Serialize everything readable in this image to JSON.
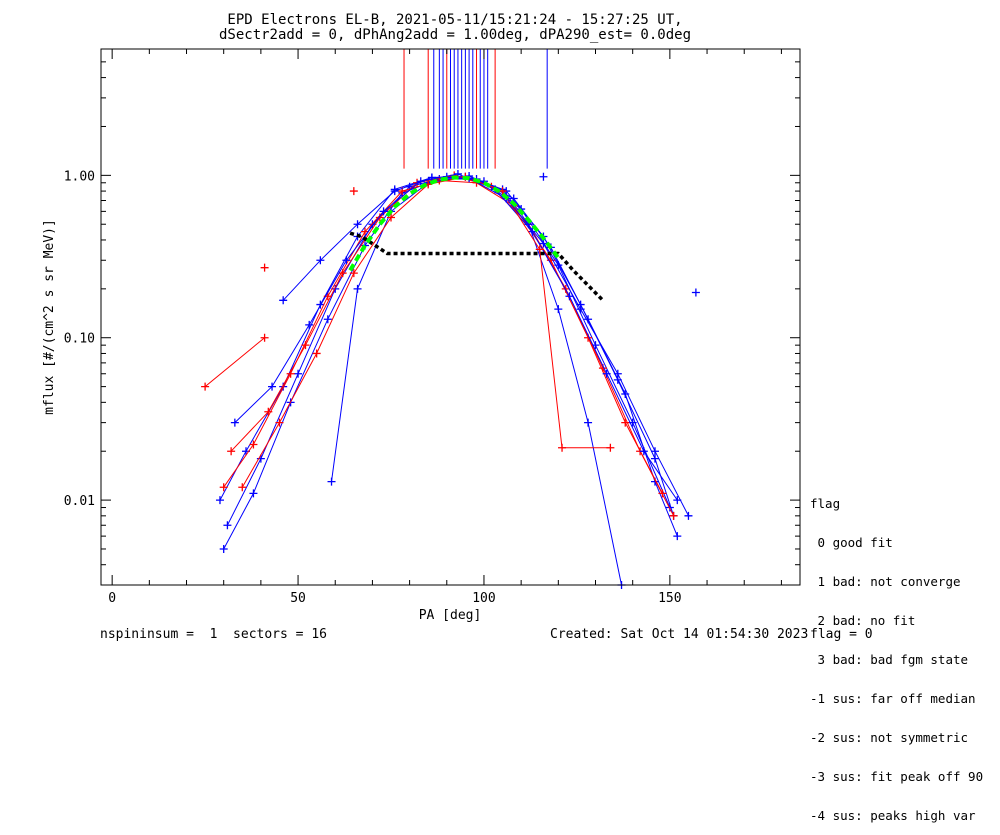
{
  "chart_data": {
    "type": "line",
    "title": "EPD Electrons EL-B, 2021-05-11/15:21:24 - 15:27:25 UT,",
    "subtitle": "dSectr2add = 0, dPhAng2add = 1.00deg, dPA290_est=   0.0deg",
    "xlabel": "PA [deg]",
    "ylabel": "mflux [#/(cm^2 s sr MeV)]",
    "xlim": [
      -3,
      185
    ],
    "ylim": [
      0.003,
      6.0
    ],
    "yscale": "log",
    "x_ticks": [
      0,
      50,
      100,
      150
    ],
    "x_tick_labels": [
      "0",
      "50",
      "100",
      "150"
    ],
    "y_ticks": [
      0.01,
      0.1,
      1.0
    ],
    "y_tick_labels": [
      "0.01",
      "0.10",
      "1.00"
    ],
    "colors": {
      "blue": "#0000ff",
      "red": "#ff0000",
      "fit": "#00ff00",
      "median": "#000000"
    },
    "series": [
      {
        "color": "blue",
        "x": [
          30,
          38,
          48,
          58,
          68,
          78,
          88,
          98,
          108,
          118,
          128,
          138,
          146,
          152
        ],
        "y": [
          0.005,
          0.011,
          0.04,
          0.13,
          0.37,
          0.78,
          0.95,
          0.95,
          0.72,
          0.36,
          0.13,
          0.045,
          0.013,
          0.006
        ]
      },
      {
        "color": "blue",
        "x": [
          31,
          40,
          50,
          60,
          70,
          80,
          90,
          100,
          110,
          120,
          130,
          140,
          150
        ],
        "y": [
          0.007,
          0.018,
          0.06,
          0.2,
          0.5,
          0.85,
          0.98,
          0.92,
          0.62,
          0.28,
          0.09,
          0.03,
          0.009
        ]
      },
      {
        "color": "blue",
        "x": [
          29,
          36,
          46,
          56,
          66,
          76,
          86,
          96,
          106,
          116,
          126,
          136,
          146,
          151
        ],
        "y": [
          0.01,
          0.02,
          0.05,
          0.16,
          0.42,
          0.82,
          0.97,
          0.99,
          0.8,
          0.42,
          0.16,
          0.055,
          0.018,
          0.008
        ]
      },
      {
        "color": "red",
        "x": [
          30,
          38,
          48,
          58,
          68,
          78,
          88,
          98,
          108,
          118,
          128,
          138,
          148
        ],
        "y": [
          0.012,
          0.022,
          0.06,
          0.18,
          0.45,
          0.8,
          0.93,
          0.9,
          0.65,
          0.3,
          0.1,
          0.03,
          0.011
        ]
      },
      {
        "color": "red",
        "x": [
          32,
          42,
          52,
          62,
          72,
          82,
          92,
          102,
          112,
          122,
          132,
          142,
          151
        ],
        "y": [
          0.02,
          0.035,
          0.09,
          0.25,
          0.55,
          0.9,
          1.0,
          0.85,
          0.5,
          0.2,
          0.065,
          0.02,
          0.008
        ]
      },
      {
        "color": "blue",
        "x": [
          33,
          43,
          53,
          63,
          73,
          83,
          93,
          103,
          113,
          123,
          133,
          143,
          152
        ],
        "y": [
          0.03,
          0.05,
          0.12,
          0.3,
          0.6,
          0.92,
          1.02,
          0.82,
          0.45,
          0.18,
          0.06,
          0.02,
          0.01
        ]
      },
      {
        "color": "red",
        "x": [
          25,
          41
        ],
        "y": [
          0.05,
          0.1
        ]
      },
      {
        "color": "blue",
        "x": [
          59,
          66,
          75,
          85,
          95,
          105,
          112,
          120,
          128,
          137
        ],
        "y": [
          0.013,
          0.2,
          0.6,
          0.9,
          0.98,
          0.82,
          0.5,
          0.15,
          0.03,
          0.003
        ]
      },
      {
        "color": "red",
        "x": [
          35,
          45,
          55,
          65,
          75,
          85,
          95,
          105,
          115,
          121,
          134
        ],
        "y": [
          0.012,
          0.03,
          0.08,
          0.25,
          0.55,
          0.88,
          0.98,
          0.8,
          0.35,
          0.021,
          0.021
        ]
      },
      {
        "color": "blue",
        "x": [
          46,
          56,
          66,
          76,
          86,
          96,
          106,
          116,
          126,
          136,
          146,
          155
        ],
        "y": [
          0.17,
          0.3,
          0.5,
          0.8,
          0.97,
          0.96,
          0.72,
          0.38,
          0.15,
          0.06,
          0.02,
          0.008
        ]
      }
    ],
    "markers": [
      {
        "color": "blue",
        "x": 157,
        "y": 0.19
      },
      {
        "color": "red",
        "x": 41,
        "y": 0.27
      },
      {
        "color": "blue",
        "x": 116,
        "y": 0.98
      },
      {
        "color": "red",
        "x": 65,
        "y": 0.8
      }
    ],
    "fit_curve": {
      "x": [
        64,
        68,
        72,
        76,
        80,
        84,
        88,
        92,
        96,
        100,
        104,
        108,
        112,
        116,
        120
      ],
      "y": [
        0.26,
        0.37,
        0.5,
        0.64,
        0.77,
        0.87,
        0.94,
        0.97,
        0.96,
        0.9,
        0.8,
        0.67,
        0.53,
        0.41,
        0.31
      ]
    },
    "median_curve": {
      "x": [
        64,
        67,
        70,
        74,
        120,
        124,
        128,
        132
      ],
      "y": [
        0.44,
        0.42,
        0.38,
        0.33,
        0.33,
        0.26,
        0.21,
        0.17
      ]
    },
    "spikes": [
      {
        "color": "red",
        "x": 78.5
      },
      {
        "color": "red",
        "x": 85.0
      },
      {
        "color": "blue",
        "x": 86.5
      },
      {
        "color": "blue",
        "x": 88.0
      },
      {
        "color": "blue",
        "x": 89.0
      },
      {
        "color": "red",
        "x": 90.0
      },
      {
        "color": "blue",
        "x": 91.0
      },
      {
        "color": "blue",
        "x": 92.0
      },
      {
        "color": "blue",
        "x": 93.0
      },
      {
        "color": "blue",
        "x": 94.0
      },
      {
        "color": "blue",
        "x": 95.0
      },
      {
        "color": "blue",
        "x": 96.0
      },
      {
        "color": "blue",
        "x": 97.0
      },
      {
        "color": "red",
        "x": 98.0
      },
      {
        "color": "blue",
        "x": 99.0
      },
      {
        "color": "blue",
        "x": 100.0
      },
      {
        "color": "blue",
        "x": 101.0
      },
      {
        "color": "red",
        "x": 103.0
      },
      {
        "color": "blue",
        "x": 117.0
      }
    ]
  },
  "legend": {
    "title": "flag",
    "items": [
      " 0 good fit",
      " 1 bad: not converge",
      " 2 bad: no fit",
      " 3 bad: bad fgm state",
      "-1 sus: far off median",
      "-2 sus: not symmetric",
      "-3 sus: fit peak off 90",
      "-4 sus: peaks high var"
    ]
  },
  "footer": {
    "left": "nspininsum =  1  sectors = 16",
    "created": "Created: Sat Oct 14 01:54:30 2023",
    "flag": "flag = 0"
  }
}
